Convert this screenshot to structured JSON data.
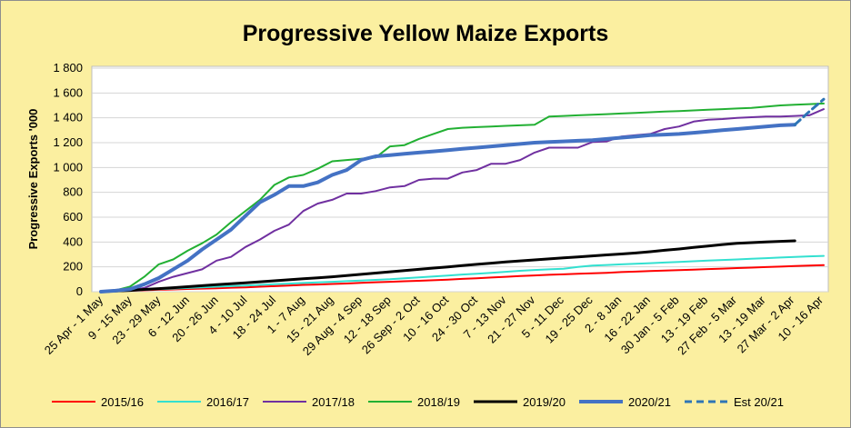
{
  "chart_data": {
    "type": "line",
    "title": "Progressive Yellow Maize Exports",
    "xlabel": "",
    "ylabel": "Progressive Exports '000",
    "ylim": [
      0,
      1800
    ],
    "yticks": [
      0,
      200,
      400,
      600,
      800,
      1000,
      1200,
      1400,
      1600,
      1800
    ],
    "ytick_labels": [
      "0",
      "200",
      "400",
      "600",
      "800",
      "1 000",
      "1 200",
      "1 400",
      "1 600",
      "1 800"
    ],
    "grid": true,
    "legend_position": "bottom",
    "x_tick_labels": [
      "25 Apr - 1 May",
      "9 - 15 May",
      "23 - 29 May",
      "6 - 12 Jun",
      "20 - 26 Jun",
      "4 - 10 Jul",
      "18 - 24 Jul",
      "1 - 7 Aug",
      "15 - 21 Aug",
      "29 Aug - 4 Sep",
      "12 - 18 Sep",
      "26 Sep - 2 Oct",
      "10 - 16 Oct",
      "24 - 30 Oct",
      "7 - 13 Nov",
      "21 - 27 Nov",
      "5 - 11 Dec",
      "19 - 25 Dec",
      "2 - 8 Jan",
      "16 - 22 Jan",
      "30 Jan - 5 Feb",
      "13 - 19 Feb",
      "27 Feb - 5 Mar",
      "13 - 19 Mar",
      "27 Mar - 2 Apr",
      "10 - 16 Apr"
    ],
    "series": [
      {
        "name": "2015/16",
        "color": "#ff0000",
        "width": 2,
        "dash": "",
        "values": [
          0,
          5,
          8,
          12,
          15,
          18,
          22,
          25,
          28,
          32,
          35,
          40,
          45,
          50,
          55,
          58,
          62,
          66,
          72,
          76,
          80,
          84,
          88,
          92,
          97,
          103,
          108,
          114,
          120,
          126,
          131,
          136,
          140,
          144,
          148,
          152,
          158,
          162,
          166,
          170,
          174,
          178,
          182,
          186,
          190,
          194,
          198,
          202,
          206,
          210,
          214
        ]
      },
      {
        "name": "2016/17",
        "color": "#33e0d0",
        "width": 2,
        "dash": "",
        "values": [
          0,
          5,
          10,
          15,
          20,
          25,
          30,
          35,
          40,
          45,
          50,
          55,
          60,
          65,
          70,
          75,
          80,
          85,
          90,
          95,
          100,
          108,
          115,
          122,
          130,
          138,
          145,
          152,
          160,
          168,
          175,
          180,
          185,
          200,
          210,
          215,
          220,
          225,
          230,
          235,
          240,
          245,
          250,
          255,
          260,
          265,
          270,
          275,
          280,
          285,
          288
        ]
      },
      {
        "name": "2017/18",
        "color": "#7030a0",
        "width": 2,
        "dash": "",
        "values": [
          0,
          5,
          12,
          30,
          80,
          120,
          150,
          180,
          250,
          280,
          360,
          420,
          490,
          540,
          650,
          710,
          740,
          790,
          790,
          810,
          840,
          850,
          900,
          910,
          910,
          960,
          980,
          1030,
          1030,
          1060,
          1120,
          1160,
          1160,
          1160,
          1205,
          1210,
          1250,
          1260,
          1270,
          1310,
          1330,
          1370,
          1385,
          1390,
          1400,
          1405,
          1410,
          1410,
          1415,
          1420,
          1470
        ]
      },
      {
        "name": "2018/19",
        "color": "#22b033",
        "width": 2,
        "dash": "",
        "values": [
          0,
          10,
          40,
          120,
          220,
          260,
          330,
          390,
          460,
          560,
          650,
          740,
          860,
          920,
          940,
          990,
          1050,
          1060,
          1070,
          1080,
          1170,
          1180,
          1230,
          1270,
          1310,
          1320,
          1325,
          1330,
          1335,
          1340,
          1345,
          1410,
          1415,
          1420,
          1425,
          1430,
          1435,
          1440,
          1445,
          1450,
          1455,
          1460,
          1465,
          1470,
          1475,
          1480,
          1490,
          1500,
          1505,
          1510,
          1515
        ]
      },
      {
        "name": "2019/20",
        "color": "#000000",
        "width": 3,
        "dash": "",
        "values": [
          0,
          5,
          10,
          18,
          25,
          32,
          40,
          48,
          56,
          64,
          72,
          80,
          88,
          96,
          104,
          112,
          120,
          130,
          140,
          150,
          160,
          170,
          180,
          190,
          200,
          210,
          220,
          230,
          240,
          248,
          256,
          264,
          272,
          280,
          288,
          296,
          304,
          312,
          322,
          334,
          344,
          356,
          368,
          380,
          390,
          395,
          400,
          405,
          410
        ]
      },
      {
        "name": "2020/21",
        "color": "#4472c4",
        "width": 4,
        "dash": "",
        "values": [
          0,
          8,
          20,
          60,
          110,
          180,
          250,
          340,
          420,
          500,
          610,
          720,
          780,
          850,
          850,
          880,
          940,
          980,
          1060,
          1090,
          1100,
          1110,
          1120,
          1130,
          1140,
          1150,
          1160,
          1170,
          1180,
          1190,
          1200,
          1205,
          1210,
          1215,
          1220,
          1230,
          1240,
          1250,
          1260,
          1265,
          1270,
          1280,
          1290,
          1300,
          1310,
          1320,
          1330,
          1340,
          1345
        ]
      },
      {
        "name": "Est 20/21",
        "color": "#2e75b6",
        "width": 3,
        "dash": "8,5",
        "offset": 48,
        "values": [
          1345,
          1450,
          1550
        ]
      }
    ]
  }
}
